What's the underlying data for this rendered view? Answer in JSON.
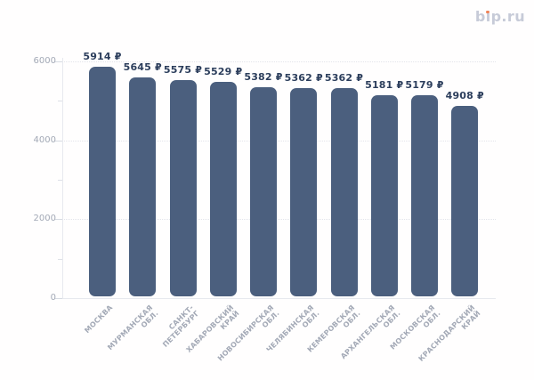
{
  "logo": {
    "text": "bip.ru",
    "part_b": "b",
    "part_i_dotless": "ı",
    "part_rest": "p.ru",
    "text_color": "#c7cbd8",
    "dot_color": "#ef8257"
  },
  "chart_data": {
    "type": "bar",
    "title": "",
    "xlabel": "",
    "ylabel": "",
    "categories": [
      "МОСКВА",
      "МУРМАНСКАЯ ОБЛ.",
      "САНКТ-ПЕТЕРБУРГ",
      "ХАБАРОВСКИЙ КРАЙ",
      "НОВОСИБИРСКАЯ ОБЛ.",
      "ЧЕЛЯБИНСКАЯ ОБЛ.",
      "КЕМЕРОВСКАЯ ОБЛ.",
      "АРХАНГЕЛЬСКАЯ ОБЛ.",
      "МОСКОВСКАЯ ОБЛ.",
      "КРАСНОДАРСКИЙ КРАЙ"
    ],
    "category_lines": [
      [
        "МОСКВА"
      ],
      [
        "МУРМАНСКАЯ",
        "ОБЛ."
      ],
      [
        "САНКТ-",
        "ПЕТЕРБУРГ"
      ],
      [
        "ХАБАРОВСКИЙ",
        "КРАЙ"
      ],
      [
        "НОВОСИБИРСКАЯ",
        "ОБЛ."
      ],
      [
        "ЧЕЛЯБИНСКАЯ",
        "ОБЛ."
      ],
      [
        "КЕМЕРОВСКАЯ",
        "ОБЛ."
      ],
      [
        "АРХАНГЕЛЬСКАЯ",
        "ОБЛ."
      ],
      [
        "МОСКОВСКАЯ",
        "ОБЛ."
      ],
      [
        "КРАСНОДАРСКИЙ",
        "КРАЙ"
      ]
    ],
    "values": [
      5914,
      5645,
      5575,
      5529,
      5382,
      5362,
      5362,
      5181,
      5179,
      4908
    ],
    "value_labels": [
      "5914 ₽",
      "5645 ₽",
      "5575 ₽",
      "5529 ₽",
      "5382 ₽",
      "5362 ₽",
      "5362 ₽",
      "5181 ₽",
      "5179 ₽",
      "4908 ₽"
    ],
    "currency_suffix": "₽",
    "ylim": [
      0,
      6000
    ],
    "y_ticks": [
      {
        "value": 0,
        "label": "0"
      },
      {
        "value": 2000,
        "label": "2000"
      },
      {
        "value": 4000,
        "label": "4000"
      },
      {
        "value": 6000,
        "label": "6000"
      }
    ],
    "y_minor_ticks": [
      1000,
      3000,
      5000
    ],
    "grid": "dotted horizontal lines at major y ticks",
    "legend": "none",
    "x_labels_rotation_deg": -45,
    "bar_color": "#4b5f7e",
    "value_label_color": "#2c3e5c",
    "axis_label_color": "#a3a9b6",
    "gridline_color": "#e2e4ea",
    "axis_line_color": "#e7e9ee"
  }
}
